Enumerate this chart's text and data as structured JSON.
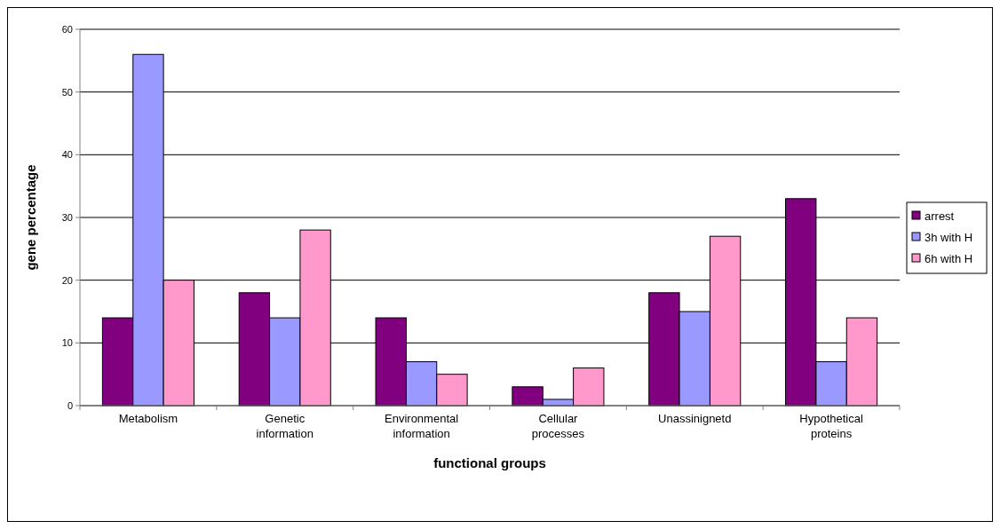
{
  "chart_data": {
    "type": "bar",
    "xlabel": "functional groups",
    "ylabel": "gene percentage",
    "categories": [
      "Metabolism",
      "Genetic information",
      "Environmental information",
      "Cellular processes",
      "Unassinignetd",
      "Hypothetical proteins"
    ],
    "series": [
      {
        "name": "arrest",
        "color": "#800080",
        "values": [
          14,
          18,
          14,
          3,
          18,
          33
        ]
      },
      {
        "name": "3h with H",
        "color": "#9999ff",
        "values": [
          56,
          14,
          7,
          1,
          15,
          7
        ]
      },
      {
        "name": "6h with H",
        "color": "#ff99cc",
        "values": [
          20,
          28,
          5,
          6,
          27,
          14
        ]
      }
    ],
    "ylim": [
      0,
      60
    ],
    "yticks": [
      0,
      10,
      20,
      30,
      40,
      50,
      60
    ],
    "grid": "y",
    "legend": "right"
  }
}
